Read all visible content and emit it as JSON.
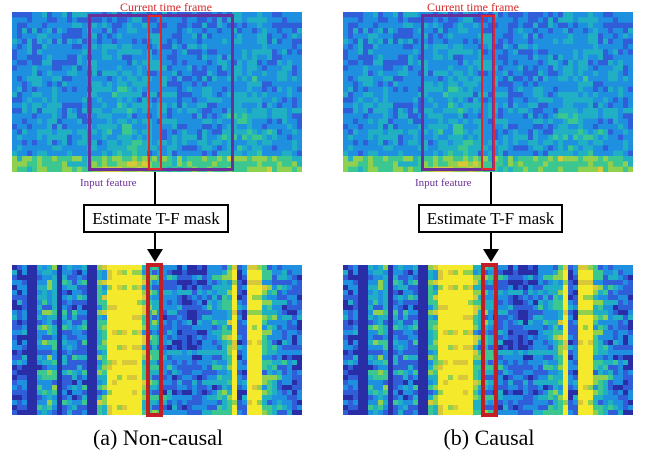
{
  "labels": {
    "current_frame": "Current time frame",
    "input_feature": "Input feature",
    "estimate": "Estimate T-F mask"
  },
  "captions": {
    "left": "(a) Non-causal",
    "right": "(b) Causal"
  },
  "colors": {
    "purple": "#6b2f9a",
    "red": "#e0262a",
    "dark_red": "#c41e24",
    "colormap": [
      "#2a2ea6",
      "#2f5ed8",
      "#1f8fe0",
      "#21b0c3",
      "#3bc78f",
      "#8fd04f",
      "#d7c93a",
      "#f4e92a"
    ]
  }
}
